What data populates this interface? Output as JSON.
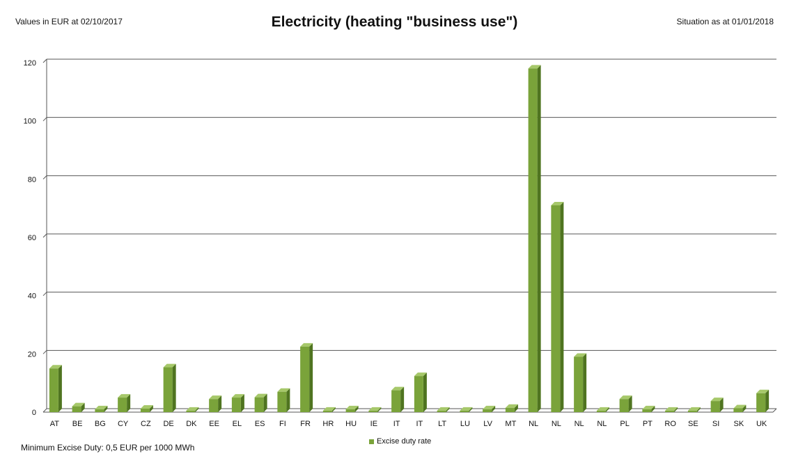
{
  "header": {
    "left_note": "Values in EUR at 02/10/2017",
    "title": "Electricity (heating \"business use\")",
    "right_note": "Situation as at 01/01/2018"
  },
  "footer": {
    "note": "Minimum Excise Duty: 0,5 EUR per 1000 MWh"
  },
  "colors": {
    "bar": "#7aa33a",
    "bar_side": "#4f7420",
    "bar_top": "#a6c86a",
    "grid": "#555555"
  },
  "chart_data": {
    "type": "bar",
    "title": "Electricity (heating \"business use\")",
    "categories": [
      "AT",
      "BE",
      "BG",
      "CY",
      "CZ",
      "DE",
      "DK",
      "EE",
      "EL",
      "ES",
      "FI",
      "FR",
      "HR",
      "HU",
      "IE",
      "IT",
      "IT",
      "LT",
      "LU",
      "LV",
      "MT",
      "NL",
      "NL",
      "NL",
      "NL",
      "PL",
      "PT",
      "RO",
      "SE",
      "SI",
      "SK",
      "UK"
    ],
    "series": [
      {
        "name": "Excise duty rate",
        "values": [
          15,
          2,
          1,
          5,
          1.2,
          15.4,
          0.5,
          4.5,
          5,
          5.1,
          7,
          22.5,
          0.5,
          1,
          0.5,
          7.5,
          12.4,
          0.5,
          0.5,
          1,
          1.5,
          118,
          71,
          19,
          0.5,
          4.5,
          1,
          0.5,
          0.5,
          3.8,
          1.3,
          6.5
        ]
      }
    ],
    "ylim": [
      0,
      120
    ],
    "yticks": [
      0,
      20,
      40,
      60,
      80,
      100,
      120
    ],
    "grid": true,
    "legend": "bottom-center"
  }
}
